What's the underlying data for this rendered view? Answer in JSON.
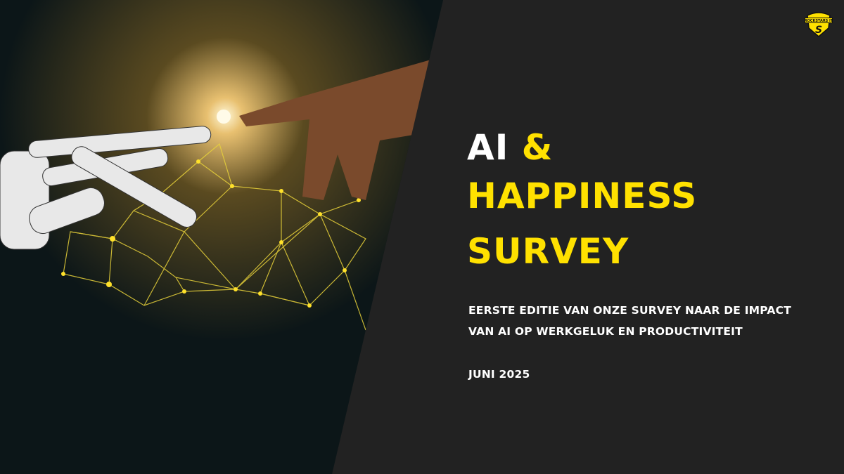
{
  "slide": {
    "title_line1_white": "AI",
    "title_line1_accent": "&",
    "title_line2": "HAPPINESS",
    "title_line3": "SURVEY",
    "subtitle_line1": "EERSTE EDITIE VAN ONZE SURVEY NAAR DE IMPACT",
    "subtitle_line2": "VAN AI OP WERKGELUK EN PRODUCTIVITEIT",
    "date": "JUNI 2025"
  },
  "logo": {
    "text": "ROCKSTARS IT",
    "icon": "rockstars-shield-logo"
  },
  "image": {
    "icon": "robot-hand-touching-human-hand-photo"
  },
  "colors": {
    "accent": "#FFE100",
    "background": "#222222",
    "text": "#FFFFFF"
  }
}
